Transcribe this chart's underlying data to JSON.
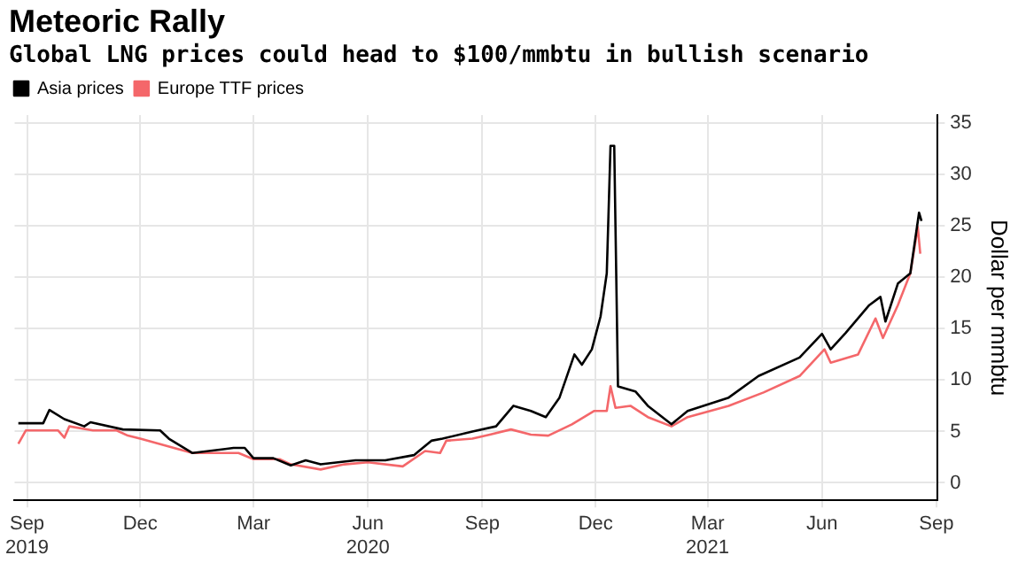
{
  "chart_data": {
    "type": "line",
    "title": "Meteoric Rally",
    "subtitle": "Global LNG prices could head to $100/mmbtu in bullish scenario",
    "ylabel": "Dollar per mmbtu",
    "xlim": [
      "2019-08-22",
      "2021-09-02"
    ],
    "xticks": [
      {
        "value": "2019-09-01",
        "label": "Sep\n2019"
      },
      {
        "value": "2019-12-01",
        "label": "Dec"
      },
      {
        "value": "2020-03-01",
        "label": "Mar"
      },
      {
        "value": "2020-06-01",
        "label": "Jun\n2020"
      },
      {
        "value": "2020-09-01",
        "label": "Sep"
      },
      {
        "value": "2020-12-01",
        "label": "Dec"
      },
      {
        "value": "2021-03-01",
        "label": "Mar\n2021"
      },
      {
        "value": "2021-06-01",
        "label": "Jun"
      },
      {
        "value": "2021-09-01",
        "label": "Sep"
      }
    ],
    "ylim": [
      -1.7,
      35.8
    ],
    "yticks": [
      0,
      5,
      10,
      15,
      20,
      25,
      30,
      35
    ],
    "grid": true,
    "legend": "top left",
    "marker": "none",
    "line_style": "solid",
    "series": [
      {
        "name": "Asia prices",
        "color": "#000000",
        "x": [
          "2019-08-25",
          "2019-09-14",
          "2019-09-19",
          "2019-10-01",
          "2019-10-17",
          "2019-10-22",
          "2019-11-17",
          "2019-12-17",
          "2019-12-24",
          "2020-01-12",
          "2020-02-14",
          "2020-02-23",
          "2020-03-01",
          "2020-03-17",
          "2020-03-31",
          "2020-04-12",
          "2020-04-24",
          "2020-05-22",
          "2020-06-15",
          "2020-07-08",
          "2020-07-22",
          "2020-07-31",
          "2020-08-24",
          "2020-09-12",
          "2020-09-26",
          "2020-10-10",
          "2020-10-22",
          "2020-11-02",
          "2020-11-14",
          "2020-11-20",
          "2020-11-28",
          "2020-12-05",
          "2020-12-10",
          "2020-12-13",
          "2020-12-16",
          "2020-12-19",
          "2021-01-02",
          "2021-01-12",
          "2021-01-31",
          "2021-02-13",
          "2021-03-18",
          "2021-04-11",
          "2021-05-14",
          "2021-06-01",
          "2021-06-08",
          "2021-06-20",
          "2021-07-09",
          "2021-07-18",
          "2021-07-22",
          "2021-08-01",
          "2021-08-11",
          "2021-08-18",
          "2021-08-20"
        ],
        "values": [
          5.8,
          5.8,
          7.1,
          6.2,
          5.5,
          5.9,
          5.2,
          5.1,
          4.3,
          2.9,
          3.4,
          3.4,
          2.4,
          2.4,
          1.7,
          2.2,
          1.8,
          2.2,
          2.2,
          2.7,
          4.1,
          4.3,
          5.0,
          5.5,
          7.5,
          7.0,
          6.4,
          8.3,
          12.5,
          11.5,
          13.0,
          16.2,
          20.4,
          32.8,
          32.8,
          9.4,
          8.9,
          7.5,
          5.7,
          7.0,
          8.3,
          10.4,
          12.2,
          14.5,
          13.0,
          14.6,
          17.3,
          18.1,
          15.7,
          19.4,
          20.4,
          26.3,
          25.5
        ]
      },
      {
        "name": "Europe TTF prices",
        "color": "#f4676a",
        "x": [
          "2019-08-25",
          "2019-08-31",
          "2019-09-26",
          "2019-10-01",
          "2019-10-05",
          "2019-10-24",
          "2019-11-12",
          "2019-11-21",
          "2019-12-01",
          "2020-01-12",
          "2020-02-18",
          "2020-03-01",
          "2020-03-22",
          "2020-03-31",
          "2020-04-24",
          "2020-05-13",
          "2020-06-01",
          "2020-06-29",
          "2020-07-17",
          "2020-07-29",
          "2020-08-03",
          "2020-08-24",
          "2020-09-07",
          "2020-09-24",
          "2020-10-10",
          "2020-10-24",
          "2020-11-12",
          "2020-11-30",
          "2020-12-10",
          "2020-12-13",
          "2020-12-17",
          "2020-12-29",
          "2021-01-12",
          "2021-01-31",
          "2021-02-13",
          "2021-03-18",
          "2021-04-15",
          "2021-05-14",
          "2021-06-03",
          "2021-06-08",
          "2021-06-30",
          "2021-07-14",
          "2021-07-20",
          "2021-08-01",
          "2021-08-11",
          "2021-08-17",
          "2021-08-19"
        ],
        "values": [
          3.8,
          5.1,
          5.1,
          4.4,
          5.5,
          5.1,
          5.1,
          4.6,
          4.3,
          2.9,
          2.9,
          2.3,
          2.3,
          1.8,
          1.3,
          1.8,
          2.0,
          1.6,
          3.1,
          2.9,
          4.1,
          4.3,
          4.7,
          5.2,
          4.7,
          4.6,
          5.7,
          7.0,
          7.0,
          9.4,
          7.3,
          7.5,
          6.4,
          5.5,
          6.4,
          7.5,
          8.8,
          10.4,
          13.0,
          11.7,
          12.5,
          16.0,
          14.1,
          17.3,
          20.4,
          24.9,
          22.3
        ]
      }
    ]
  }
}
